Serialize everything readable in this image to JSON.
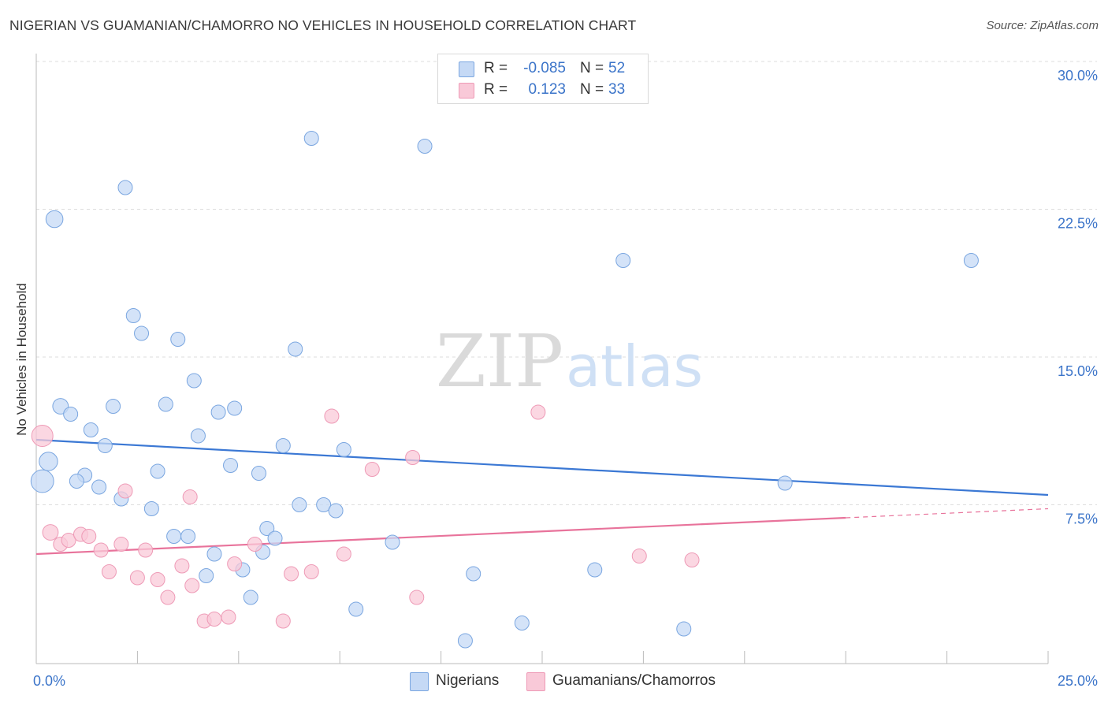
{
  "title": "NIGERIAN VS GUAMANIAN/CHAMORRO NO VEHICLES IN HOUSEHOLD CORRELATION CHART",
  "source": "Source: ZipAtlas.com",
  "watermark": {
    "zip": "ZIP",
    "atlas": "atlas"
  },
  "legend": {
    "row1": {
      "r_label": "R =",
      "r_value": "-0.085",
      "n_label": "N =",
      "n_value": "52"
    },
    "row2": {
      "r_label": "R =",
      "r_value": "0.123",
      "n_label": "N =",
      "n_value": "33"
    }
  },
  "bottom_legend": {
    "series1": "Nigerians",
    "series2": "Guamanians/Chamorros"
  },
  "colors": {
    "blue_fill": "#c5d9f5",
    "blue_stroke": "#7aa6e0",
    "blue_line": "#3b78d4",
    "pink_fill": "#f9c9d8",
    "pink_stroke": "#ee9ab6",
    "pink_line": "#e8739b",
    "tick_text": "#3b74c9",
    "grid": "#dddddd"
  },
  "chart_data": {
    "type": "scatter",
    "title": "NIGERIAN VS GUAMANIAN/CHAMORRO NO VEHICLES IN HOUSEHOLD CORRELATION CHART",
    "xlabel": "",
    "ylabel": "No Vehicles in Household",
    "xlim": [
      0,
      25
    ],
    "ylim": [
      0,
      30
    ],
    "x_tick_labels": [
      "0.0%",
      "25.0%"
    ],
    "y_ticks": [
      7.5,
      15.0,
      22.5,
      30.0
    ],
    "y_tick_labels": [
      "7.5%",
      "15.0%",
      "22.5%",
      "30.0%"
    ],
    "grid": true,
    "series": [
      {
        "name": "Nigerians",
        "R": -0.085,
        "N": 52,
        "trend": {
          "x": [
            0,
            25
          ],
          "y": [
            10.8,
            8.0
          ],
          "dashed_from": null
        },
        "points": [
          {
            "x": 0.45,
            "y": 22.0,
            "s": 1.2
          },
          {
            "x": 2.2,
            "y": 23.6,
            "s": 1.0
          },
          {
            "x": 6.8,
            "y": 26.1,
            "s": 1.0
          },
          {
            "x": 9.6,
            "y": 25.7,
            "s": 1.0
          },
          {
            "x": 14.5,
            "y": 19.9,
            "s": 1.0
          },
          {
            "x": 23.1,
            "y": 19.9,
            "s": 1.0
          },
          {
            "x": 2.4,
            "y": 17.1,
            "s": 1.0
          },
          {
            "x": 2.6,
            "y": 16.2,
            "s": 1.0
          },
          {
            "x": 3.5,
            "y": 15.9,
            "s": 1.0
          },
          {
            "x": 6.4,
            "y": 15.4,
            "s": 1.0
          },
          {
            "x": 3.9,
            "y": 13.8,
            "s": 1.0
          },
          {
            "x": 0.6,
            "y": 12.5,
            "s": 1.1
          },
          {
            "x": 0.85,
            "y": 12.1,
            "s": 1.0
          },
          {
            "x": 1.9,
            "y": 12.5,
            "s": 1.0
          },
          {
            "x": 3.2,
            "y": 12.6,
            "s": 1.0
          },
          {
            "x": 4.5,
            "y": 12.2,
            "s": 1.0
          },
          {
            "x": 4.9,
            "y": 12.4,
            "s": 1.0
          },
          {
            "x": 1.35,
            "y": 11.3,
            "s": 1.0
          },
          {
            "x": 4.0,
            "y": 11.0,
            "s": 1.0
          },
          {
            "x": 1.7,
            "y": 10.5,
            "s": 1.0
          },
          {
            "x": 6.1,
            "y": 10.5,
            "s": 1.0
          },
          {
            "x": 7.6,
            "y": 10.3,
            "s": 1.0
          },
          {
            "x": 0.3,
            "y": 9.7,
            "s": 1.3
          },
          {
            "x": 0.15,
            "y": 8.7,
            "s": 1.6
          },
          {
            "x": 1.2,
            "y": 9.0,
            "s": 1.0
          },
          {
            "x": 3.0,
            "y": 9.2,
            "s": 1.0
          },
          {
            "x": 4.8,
            "y": 9.5,
            "s": 1.0
          },
          {
            "x": 5.5,
            "y": 9.1,
            "s": 1.0
          },
          {
            "x": 1.0,
            "y": 8.7,
            "s": 1.0
          },
          {
            "x": 1.55,
            "y": 8.4,
            "s": 1.0
          },
          {
            "x": 2.1,
            "y": 7.8,
            "s": 1.0
          },
          {
            "x": 2.85,
            "y": 7.3,
            "s": 1.0
          },
          {
            "x": 6.5,
            "y": 7.5,
            "s": 1.0
          },
          {
            "x": 7.1,
            "y": 7.5,
            "s": 1.0
          },
          {
            "x": 7.4,
            "y": 7.2,
            "s": 1.0
          },
          {
            "x": 5.7,
            "y": 6.3,
            "s": 1.0
          },
          {
            "x": 3.4,
            "y": 5.9,
            "s": 1.0
          },
          {
            "x": 3.75,
            "y": 5.9,
            "s": 1.0
          },
          {
            "x": 5.9,
            "y": 5.8,
            "s": 1.0
          },
          {
            "x": 8.8,
            "y": 5.6,
            "s": 1.0
          },
          {
            "x": 4.4,
            "y": 5.0,
            "s": 1.0
          },
          {
            "x": 5.6,
            "y": 5.1,
            "s": 1.0
          },
          {
            "x": 18.5,
            "y": 8.6,
            "s": 1.0
          },
          {
            "x": 5.1,
            "y": 4.2,
            "s": 1.0
          },
          {
            "x": 4.2,
            "y": 3.9,
            "s": 1.0
          },
          {
            "x": 10.8,
            "y": 4.0,
            "s": 1.0
          },
          {
            "x": 13.8,
            "y": 4.2,
            "s": 1.0
          },
          {
            "x": 5.3,
            "y": 2.8,
            "s": 1.0
          },
          {
            "x": 7.9,
            "y": 2.2,
            "s": 1.0
          },
          {
            "x": 12.0,
            "y": 1.5,
            "s": 1.0
          },
          {
            "x": 16.0,
            "y": 1.2,
            "s": 1.0
          },
          {
            "x": 10.6,
            "y": 0.6,
            "s": 1.0
          }
        ]
      },
      {
        "name": "Guamanians/Chamorros",
        "R": 0.123,
        "N": 33,
        "trend": {
          "x": [
            0,
            25
          ],
          "y": [
            5.0,
            7.3
          ],
          "dashed_from": 20.0
        },
        "points": [
          {
            "x": 0.15,
            "y": 11.0,
            "s": 1.5
          },
          {
            "x": 7.3,
            "y": 12.0,
            "s": 1.0
          },
          {
            "x": 12.4,
            "y": 12.2,
            "s": 1.0
          },
          {
            "x": 9.3,
            "y": 9.9,
            "s": 1.0
          },
          {
            "x": 8.3,
            "y": 9.3,
            "s": 1.0
          },
          {
            "x": 2.2,
            "y": 8.2,
            "s": 1.0
          },
          {
            "x": 3.8,
            "y": 7.9,
            "s": 1.0
          },
          {
            "x": 0.35,
            "y": 6.1,
            "s": 1.1
          },
          {
            "x": 0.6,
            "y": 5.5,
            "s": 1.0
          },
          {
            "x": 0.8,
            "y": 5.7,
            "s": 1.0
          },
          {
            "x": 1.1,
            "y": 6.0,
            "s": 1.0
          },
          {
            "x": 1.3,
            "y": 5.9,
            "s": 1.0
          },
          {
            "x": 1.6,
            "y": 5.2,
            "s": 1.0
          },
          {
            "x": 2.1,
            "y": 5.5,
            "s": 1.0
          },
          {
            "x": 2.7,
            "y": 5.2,
            "s": 1.0
          },
          {
            "x": 5.4,
            "y": 5.5,
            "s": 1.0
          },
          {
            "x": 7.6,
            "y": 5.0,
            "s": 1.0
          },
          {
            "x": 14.9,
            "y": 4.9,
            "s": 1.0
          },
          {
            "x": 16.2,
            "y": 4.7,
            "s": 1.0
          },
          {
            "x": 4.9,
            "y": 4.5,
            "s": 1.0
          },
          {
            "x": 3.6,
            "y": 4.4,
            "s": 1.0
          },
          {
            "x": 1.8,
            "y": 4.1,
            "s": 1.0
          },
          {
            "x": 2.5,
            "y": 3.8,
            "s": 1.0
          },
          {
            "x": 3.0,
            "y": 3.7,
            "s": 1.0
          },
          {
            "x": 6.3,
            "y": 4.0,
            "s": 1.0
          },
          {
            "x": 6.8,
            "y": 4.1,
            "s": 1.0
          },
          {
            "x": 3.85,
            "y": 3.4,
            "s": 1.0
          },
          {
            "x": 3.25,
            "y": 2.8,
            "s": 1.0
          },
          {
            "x": 9.4,
            "y": 2.8,
            "s": 1.0
          },
          {
            "x": 4.15,
            "y": 1.6,
            "s": 1.0
          },
          {
            "x": 4.4,
            "y": 1.7,
            "s": 1.0
          },
          {
            "x": 4.75,
            "y": 1.8,
            "s": 1.0
          },
          {
            "x": 6.1,
            "y": 1.6,
            "s": 1.0
          }
        ]
      }
    ]
  }
}
